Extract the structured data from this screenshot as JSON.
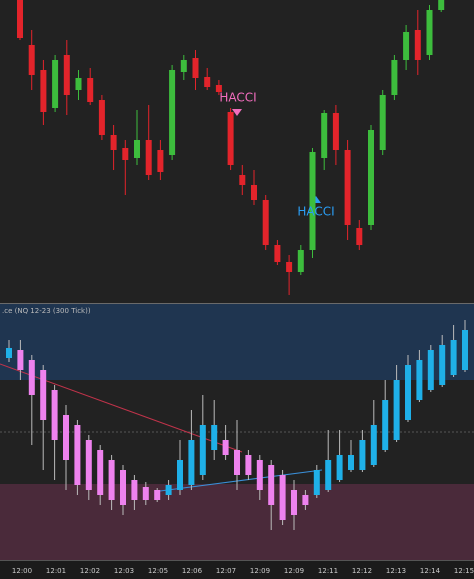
{
  "chart_data": [
    {
      "type": "candlestick",
      "up_color": "#3dbd3d",
      "down_color": "#e3242b",
      "ylim": [
        0,
        300
      ],
      "annotations": [
        {
          "text": "HACCI",
          "color": "#f26dbe"
        },
        {
          "text": "HACCI",
          "color": "#2a9df4"
        }
      ],
      "open": [
        300,
        255,
        230,
        192,
        245,
        210,
        222,
        200,
        165,
        152,
        142,
        160,
        150,
        145,
        228,
        242,
        223,
        215,
        188,
        125,
        115,
        100,
        55,
        38,
        28,
        50,
        142,
        187,
        150,
        72,
        75,
        150,
        205,
        240,
        270,
        245,
        290
      ],
      "close": [
        262,
        225,
        188,
        240,
        205,
        222,
        198,
        165,
        150,
        140,
        160,
        125,
        128,
        230,
        240,
        222,
        213,
        208,
        135,
        115,
        100,
        55,
        38,
        28,
        50,
        148,
        187,
        150,
        75,
        55,
        170,
        205,
        240,
        268,
        240,
        290,
        300
      ],
      "high": [
        300,
        270,
        240,
        245,
        260,
        230,
        232,
        205,
        175,
        160,
        190,
        195,
        160,
        235,
        245,
        250,
        232,
        220,
        192,
        135,
        130,
        105,
        60,
        45,
        55,
        152,
        190,
        195,
        160,
        80,
        175,
        210,
        245,
        275,
        290,
        295,
        300
      ],
      "low": [
        260,
        210,
        175,
        188,
        185,
        200,
        195,
        160,
        130,
        105,
        135,
        120,
        120,
        140,
        220,
        210,
        210,
        205,
        130,
        105,
        95,
        50,
        35,
        5,
        25,
        42,
        130,
        135,
        60,
        50,
        70,
        145,
        200,
        230,
        225,
        240,
        288
      ]
    },
    {
      "type": "candlestick",
      "title": ".ce (NQ 12-23 (300 Tick))",
      "up_color": "#1fb0e8",
      "down_color": "#ee82ee",
      "ylim": [
        0,
        257
      ],
      "open": [
        202,
        210,
        200,
        190,
        170,
        145,
        135,
        120,
        110,
        100,
        90,
        80,
        73,
        70,
        65,
        70,
        75,
        85,
        110,
        120,
        110,
        105,
        100,
        95,
        85,
        70,
        65,
        65,
        70,
        80,
        90,
        90,
        95,
        110,
        120,
        140,
        160,
        170,
        175,
        185,
        190
      ],
      "close": [
        212,
        190,
        165,
        140,
        120,
        100,
        75,
        70,
        65,
        60,
        55,
        60,
        60,
        60,
        75,
        100,
        120,
        135,
        135,
        105,
        85,
        85,
        70,
        55,
        40,
        45,
        55,
        90,
        100,
        105,
        105,
        120,
        135,
        160,
        180,
        195,
        200,
        210,
        215,
        220,
        230
      ],
      "high": [
        220,
        220,
        205,
        195,
        175,
        155,
        140,
        125,
        115,
        105,
        95,
        85,
        78,
        72,
        80,
        120,
        150,
        165,
        160,
        135,
        140,
        110,
        105,
        100,
        90,
        80,
        70,
        95,
        130,
        130,
        120,
        130,
        160,
        180,
        195,
        205,
        210,
        215,
        225,
        235,
        240
      ],
      "low": [
        198,
        180,
        115,
        90,
        80,
        70,
        65,
        60,
        55,
        50,
        45,
        50,
        55,
        58,
        60,
        65,
        70,
        80,
        100,
        100,
        70,
        80,
        60,
        30,
        35,
        30,
        50,
        62,
        68,
        78,
        88,
        88,
        93,
        108,
        118,
        138,
        158,
        168,
        173,
        183,
        188
      ],
      "x_tick_labels": [
        "12:00",
        "12:01",
        "12:02",
        "12:03",
        "12:05",
        "12:06",
        "12:07",
        "12:09",
        "12:09",
        "12:11",
        "12:12",
        "12:13",
        "12:14",
        "12:15"
      ]
    }
  ]
}
